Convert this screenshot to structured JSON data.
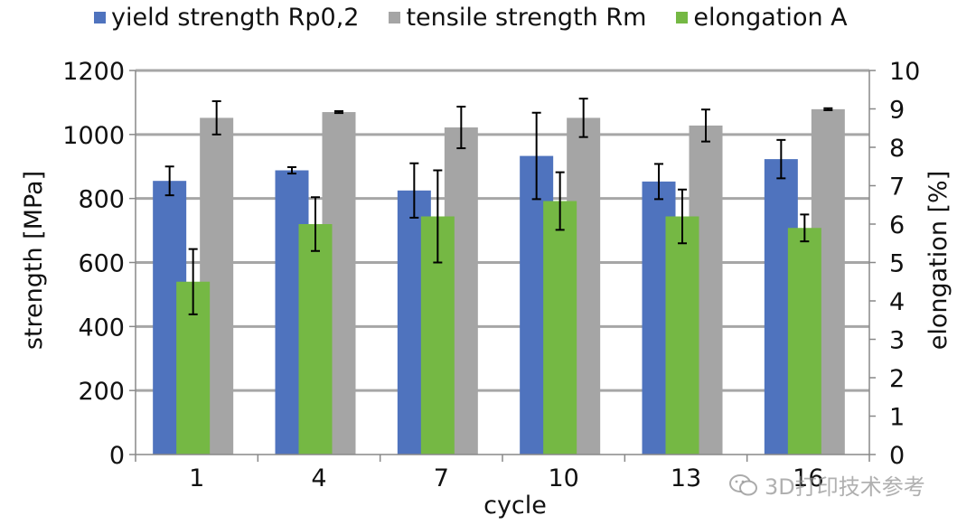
{
  "chart_data": {
    "type": "bar",
    "categories": [
      "1",
      "4",
      "7",
      "10",
      "13",
      "16"
    ],
    "xlabel": "cycle",
    "ylabel": "strength [MPa]",
    "y2label": "elongation [%]",
    "ylim": [
      0,
      1200
    ],
    "y2lim": [
      0,
      10
    ],
    "yticks": [
      0,
      200,
      400,
      600,
      800,
      1000,
      1200
    ],
    "y2ticks": [
      0,
      1,
      2,
      3,
      4,
      5,
      6,
      7,
      8,
      9,
      10
    ],
    "grid": true,
    "legend_position": "top",
    "series": [
      {
        "name": "yield strength Rp0,2",
        "axis": "left",
        "color": "#4f73be",
        "values": [
          855,
          888,
          825,
          933,
          853,
          923
        ],
        "errors": [
          45,
          10,
          85,
          135,
          55,
          60
        ]
      },
      {
        "name": "tensile strength Rm",
        "axis": "left",
        "color": "#a5a5a5",
        "values": [
          1052,
          1070,
          1022,
          1052,
          1028,
          1079
        ],
        "errors": [
          52,
          3,
          65,
          60,
          50,
          3
        ]
      },
      {
        "name": "elongation A",
        "axis": "right",
        "color": "#75b844",
        "values": [
          4.5,
          6.0,
          6.2,
          6.6,
          6.2,
          5.9
        ],
        "errors": [
          0.85,
          0.7,
          1.2,
          0.75,
          0.7,
          0.35
        ]
      }
    ]
  },
  "watermark": {
    "text": "3D打印技术参考",
    "icon": "wechat-icon"
  }
}
